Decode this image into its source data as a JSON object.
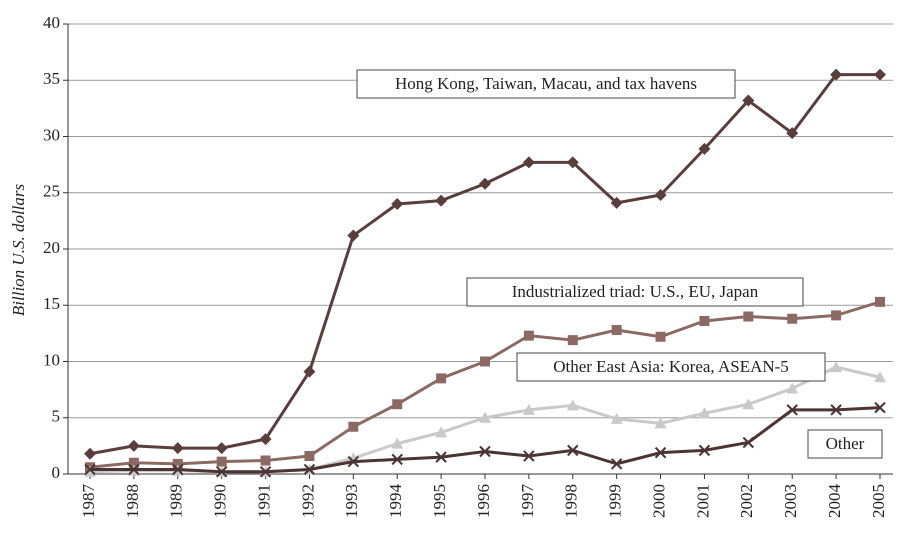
{
  "chart_data": {
    "type": "line",
    "y_label": "Billion U.S. dollars",
    "categories": [
      "1987",
      "1988",
      "1989",
      "1990",
      "1991",
      "1992",
      "1993",
      "1994",
      "1995",
      "1996",
      "1997",
      "1998",
      "1999",
      "2000",
      "2001",
      "2002",
      "2003",
      "2004",
      "2005"
    ],
    "series": [
      {
        "name": "Hong Kong, Taiwan, Macau, and tax havens",
        "color": "#5a3e3e",
        "marker": "diamond",
        "values": [
          1.8,
          2.5,
          2.3,
          2.3,
          3.1,
          9.1,
          21.2,
          24.0,
          24.3,
          25.8,
          27.7,
          27.7,
          24.1,
          24.8,
          28.9,
          33.2,
          30.3,
          35.5,
          35.5
        ]
      },
      {
        "name": "Industrialized triad: U.S., EU, Japan",
        "color": "#8c6a64",
        "marker": "square",
        "values": [
          0.6,
          1.0,
          0.9,
          1.1,
          1.2,
          1.6,
          4.2,
          6.2,
          8.5,
          10.0,
          12.3,
          11.9,
          12.8,
          12.2,
          13.6,
          14.0,
          13.8,
          14.1,
          15.3
        ]
      },
      {
        "name": "Other East Asia: Korea, ASEAN-5",
        "color": "#c9c9c9",
        "marker": "triangle",
        "values": [
          0.2,
          0.3,
          0.3,
          0.2,
          0.2,
          0.4,
          1.4,
          2.7,
          3.7,
          5.0,
          5.7,
          6.1,
          4.9,
          4.5,
          5.4,
          6.2,
          7.6,
          9.5,
          8.6
        ]
      },
      {
        "name": "Other",
        "color": "#4a3434",
        "marker": "x",
        "values": [
          0.4,
          0.4,
          0.4,
          0.2,
          0.2,
          0.4,
          1.1,
          1.3,
          1.5,
          2.0,
          1.6,
          2.1,
          0.9,
          1.9,
          2.1,
          2.8,
          5.7,
          5.7,
          5.9
        ]
      }
    ],
    "ylim": [
      0,
      40
    ],
    "yticks": [
      0,
      5,
      10,
      15,
      20,
      25,
      30,
      35,
      40
    ],
    "grid": true
  }
}
